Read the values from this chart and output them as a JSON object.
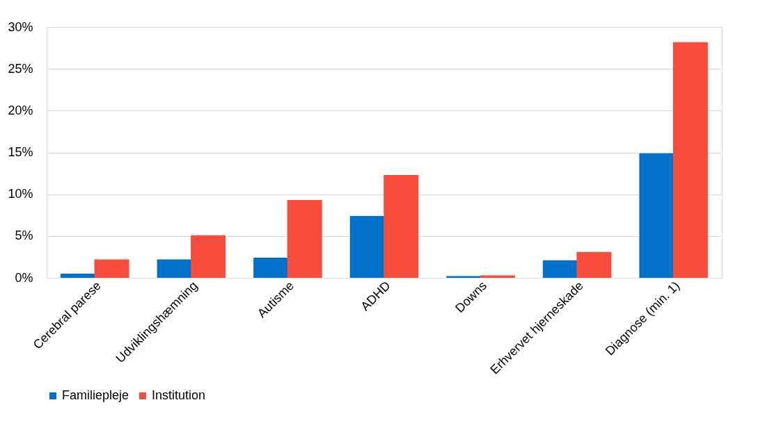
{
  "chart_data": {
    "type": "bar",
    "categories": [
      "Cerebral parese",
      "Udviklingshæmning",
      "Autisme",
      "ADHD",
      "Downs",
      "Erhvervet hjerneskade",
      "Diagnose (min. 1)"
    ],
    "series": [
      {
        "name": "Familiepleje",
        "color": "#0070c8",
        "values": [
          0.5,
          2.2,
          2.4,
          7.4,
          0.2,
          2.1,
          14.9
        ]
      },
      {
        "name": "Institution",
        "color": "#f84c3c",
        "values": [
          2.2,
          5.1,
          9.3,
          12.3,
          0.3,
          3.1,
          28.2
        ]
      }
    ],
    "ylim": [
      0,
      30
    ],
    "yticks": [
      {
        "value": 0,
        "label": "0%"
      },
      {
        "value": 5,
        "label": "5%"
      },
      {
        "value": 10,
        "label": "10%"
      },
      {
        "value": 15,
        "label": "15%"
      },
      {
        "value": 20,
        "label": "20%"
      },
      {
        "value": 25,
        "label": "25%"
      },
      {
        "value": 30,
        "label": "30%"
      }
    ],
    "grid": "y",
    "legend": "bottom"
  }
}
